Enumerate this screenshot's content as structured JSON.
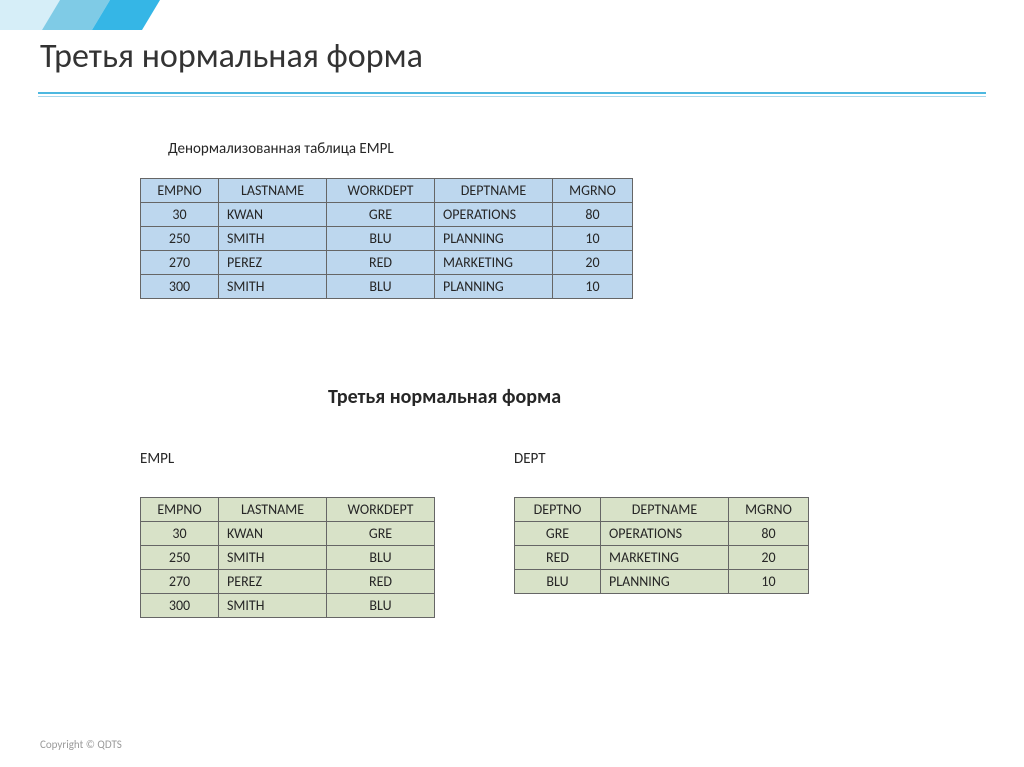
{
  "title": "Третья нормальная форма",
  "captions": {
    "denorm": "Денормализованная таблица EMPL",
    "subtitle": "Третья нормальная форма",
    "empl": "EMPL",
    "dept": "DEPT"
  },
  "tables": {
    "denorm": {
      "theme": "blue",
      "columns": [
        "EMPNO",
        "LASTNAME",
        "WORKDEPT",
        "DEPTNAME",
        "MGRNO"
      ],
      "col_align": [
        "center",
        "left",
        "center",
        "left",
        "center"
      ],
      "col_widths": [
        "w-empno",
        "w-last",
        "w-wdept",
        "w-dname",
        "w-mgrno"
      ],
      "rows": [
        [
          "30",
          "KWAN",
          "GRE",
          "OPERATIONS",
          "80"
        ],
        [
          "250",
          "SMITH",
          "BLU",
          "PLANNING",
          "10"
        ],
        [
          "270",
          "PEREZ",
          "RED",
          "MARKETING",
          "20"
        ],
        [
          "300",
          "SMITH",
          "BLU",
          "PLANNING",
          "10"
        ]
      ]
    },
    "empl": {
      "theme": "green",
      "columns": [
        "EMPNO",
        "LASTNAME",
        "WORKDEPT"
      ],
      "col_align": [
        "center",
        "left",
        "center"
      ],
      "col_widths": [
        "w-empno",
        "w-last",
        "w-wdept"
      ],
      "rows": [
        [
          "30",
          "KWAN",
          "GRE"
        ],
        [
          "250",
          "SMITH",
          "BLU"
        ],
        [
          "270",
          "PEREZ",
          "RED"
        ],
        [
          "300",
          "SMITH",
          "BLU"
        ]
      ]
    },
    "dept": {
      "theme": "green",
      "columns": [
        "DEPTNO",
        "DEPTNAME",
        "MGRNO"
      ],
      "col_align": [
        "center",
        "left",
        "center"
      ],
      "col_widths": [
        "w-deptno",
        "w-dname2",
        "w-mgrno"
      ],
      "rows": [
        [
          "GRE",
          "OPERATIONS",
          "80"
        ],
        [
          "RED",
          "MARKETING",
          "20"
        ],
        [
          "BLU",
          "PLANNING",
          "10"
        ]
      ]
    }
  },
  "colors": {
    "blue_cell": "#bdd7ee",
    "green_cell": "#d8e2c8",
    "border": "#666666",
    "divider": "#4db8e0",
    "accent": "#35b6e6"
  },
  "footer": "Copyright © QDTS"
}
